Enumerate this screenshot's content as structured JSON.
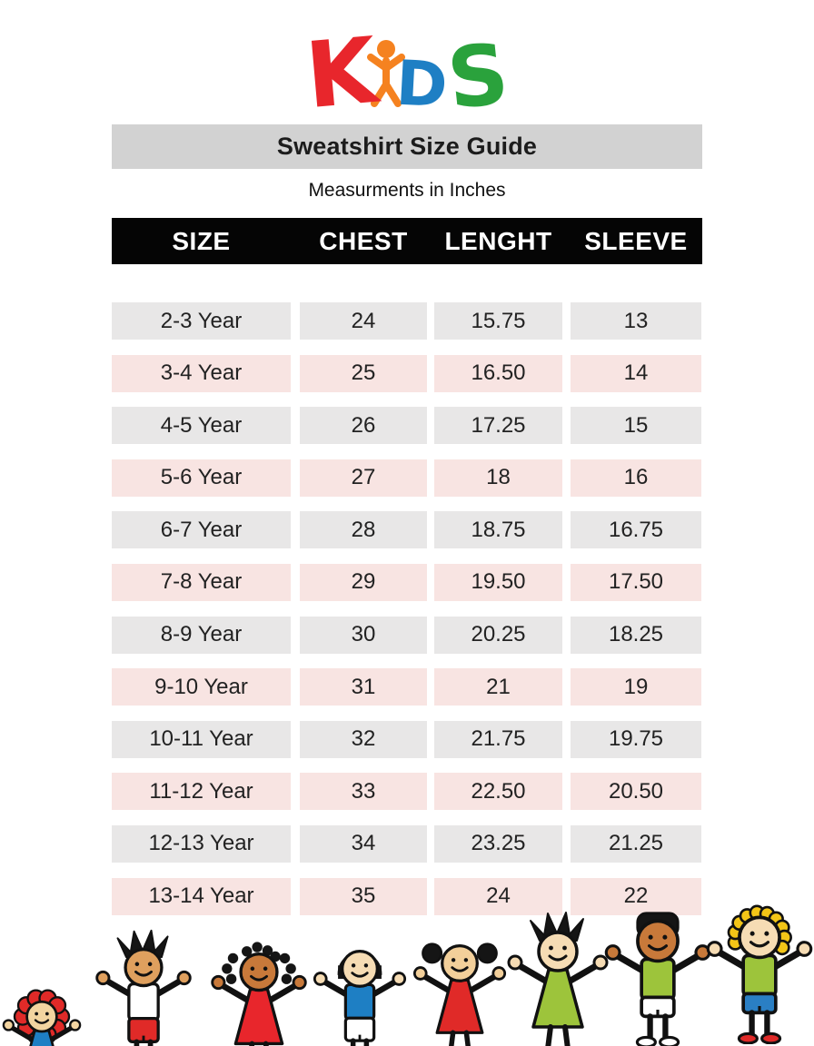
{
  "logo": {
    "k": "K",
    "d": "D",
    "s": "S",
    "person_icon": "orange-child-stick-figure",
    "colors": {
      "k": "#e8262c",
      "person": "#f58220",
      "d": "#1e7fc4",
      "s": "#2aa23c"
    }
  },
  "title_bar": {
    "text": "Sweatshirt Size Guide",
    "bg": "#d2d2d2"
  },
  "subtitle": "Measurments in Inches",
  "table": {
    "headers": [
      "SIZE",
      "CHEST",
      "LENGHT",
      "SLEEVE"
    ],
    "header_bg": "#050505",
    "header_text_color": "#ffffff",
    "row_colors": {
      "gray": "#e8e7e7",
      "pink": "#f8e4e2"
    },
    "rows": [
      [
        "2-3 Year",
        "24",
        "15.75",
        "13"
      ],
      [
        "3-4 Year",
        "25",
        "16.50",
        "14"
      ],
      [
        "4-5 Year",
        "26",
        "17.25",
        "15"
      ],
      [
        "5-6 Year",
        "27",
        "18",
        "16"
      ],
      [
        "6-7 Year",
        "28",
        "18.75",
        "16.75"
      ],
      [
        "7-8 Year",
        "29",
        "19.50",
        "17.50"
      ],
      [
        "8-9 Year",
        "30",
        "20.25",
        "18.25"
      ],
      [
        "9-10 Year",
        "31",
        "21",
        "19"
      ],
      [
        "10-11 Year",
        "32",
        "21.75",
        "19.75"
      ],
      [
        "11-12 Year",
        "33",
        "22.50",
        "20.50"
      ],
      [
        "12-13 Year",
        "34",
        "23.25",
        "21.25"
      ],
      [
        "13-14 Year",
        "35",
        "24",
        "22"
      ]
    ]
  },
  "footer_kids": [
    {
      "name": "girl-red-flower-hair-blue-dress",
      "skin": "#f2d4a0",
      "hair": "#e02a28",
      "hair_style": "flower",
      "top": "#1e7fc4",
      "top_style": "dress",
      "bottom": "",
      "shoes": "",
      "shorts": false
    },
    {
      "name": "boy-spiky-hair-white-shirt-red-pants",
      "skin": "#dfa05e",
      "hair": "#151515",
      "hair_style": "spiky",
      "top": "#ffffff",
      "top_style": "shirt",
      "bottom": "#e02a28",
      "shoes": "",
      "shorts": false
    },
    {
      "name": "girl-curly-pigtails-red-dress",
      "skin": "#c8793a",
      "hair": "#151515",
      "hair_style": "squiggle",
      "top": "#e8262c",
      "top_style": "dress",
      "bottom": "",
      "shoes": "",
      "shorts": false
    },
    {
      "name": "boy-bowl-cut-blue-shirt-white-pants",
      "skin": "#f6dcb4",
      "hair": "#151515",
      "hair_style": "bowl",
      "top": "#1e7fc4",
      "top_style": "shirt",
      "bottom": "#ffffff",
      "shoes": "",
      "shorts": false
    },
    {
      "name": "girl-pigtails-red-dress",
      "skin": "#f2cf9a",
      "hair": "#151515",
      "hair_style": "pigtails",
      "top": "#e02a28",
      "top_style": "dress",
      "bottom": "",
      "shoes": "",
      "shorts": false
    },
    {
      "name": "girl-spiky-hair-green-dress",
      "skin": "#f6dcb4",
      "hair": "#151515",
      "hair_style": "spiky",
      "top": "#9dc43b",
      "top_style": "dress",
      "bottom": "",
      "shoes": "",
      "shorts": false
    },
    {
      "name": "boy-green-tank-white-shorts",
      "skin": "#c8793a",
      "hair": "#151515",
      "hair_style": "flat",
      "top": "#9dc43b",
      "top_style": "shirt",
      "bottom": "#ffffff",
      "shoes": "#ffffff",
      "shorts": true
    },
    {
      "name": "boy-blonde-green-shirt-blue-shorts",
      "skin": "#f6dcb4",
      "hair": "#f3c517",
      "hair_style": "sun",
      "top": "#9dc43b",
      "top_style": "shirt",
      "bottom": "#2a7fc4",
      "shoes": "#e02a28",
      "shorts": true
    }
  ]
}
